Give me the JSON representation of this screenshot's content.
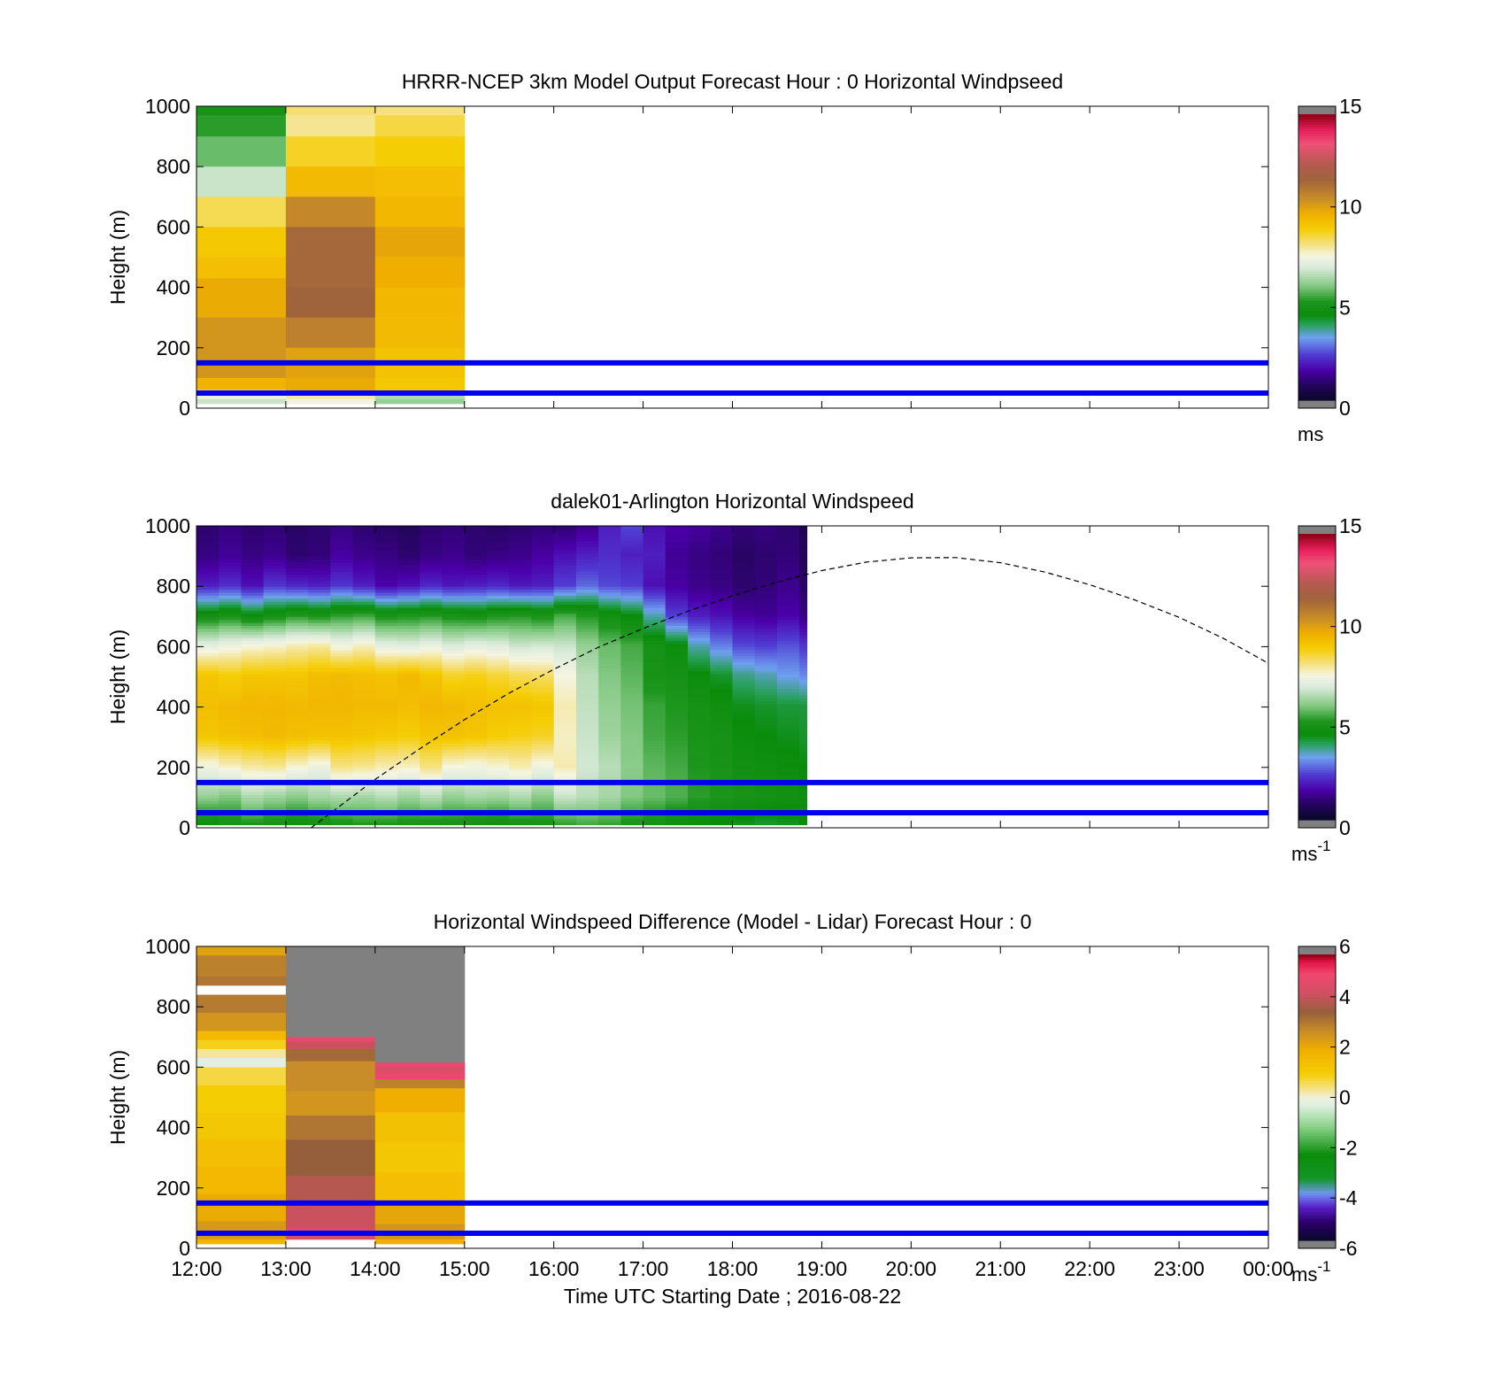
{
  "figure": {
    "xlabel": "Time UTC  Starting Date ; 2016-08-22",
    "xticks": [
      "12:00",
      "13:00",
      "14:00",
      "15:00",
      "16:00",
      "17:00",
      "18:00",
      "19:00",
      "20:00",
      "21:00",
      "22:00",
      "23:00",
      "00:00"
    ],
    "yticks": [
      "0",
      "200",
      "400",
      "600",
      "800",
      "1000"
    ],
    "ylabel": "Height (m)"
  },
  "chart_data": [
    {
      "type": "heatmap",
      "title": "HRRR-NCEP 3km Model Output   Forecast Hour : 0 Horizontal Windpseed",
      "ylabel": "Height (m)",
      "ylim": [
        0,
        1000
      ],
      "xlim": [
        "12:00",
        "00:00"
      ],
      "colorbar": {
        "ticks": [
          "0",
          "5",
          "10",
          "15"
        ],
        "range": [
          0,
          15
        ],
        "unit_text": "ms",
        "unit_sup": ""
      },
      "reference_lines_m": [
        150,
        50
      ],
      "reference_line_color": "#0000ee",
      "columns": [
        {
          "start": "12:00",
          "end": "13:00",
          "cells": [
            [
              970,
              1000,
              5
            ],
            [
              900,
              970,
              5.3
            ],
            [
              800,
              900,
              5.8
            ],
            [
              700,
              800,
              6.8
            ],
            [
              600,
              700,
              8.5
            ],
            [
              500,
              600,
              9.1
            ],
            [
              430,
              500,
              9.4
            ],
            [
              300,
              430,
              9.9
            ],
            [
              200,
              300,
              10.4
            ],
            [
              100,
              200,
              10.4
            ],
            [
              60,
              100,
              9.7
            ],
            [
              30,
              60,
              7.4
            ],
            [
              15,
              30,
              6.8
            ]
          ]
        },
        {
          "start": "13:00",
          "end": "14:00",
          "cells": [
            [
              970,
              1000,
              8.3
            ],
            [
              900,
              970,
              8.1
            ],
            [
              800,
              900,
              8.8
            ],
            [
              700,
              800,
              9.5
            ],
            [
              600,
              700,
              10.7
            ],
            [
              400,
              600,
              11.5
            ],
            [
              300,
              400,
              11.6
            ],
            [
              200,
              300,
              10.9
            ],
            [
              100,
              200,
              10.1
            ],
            [
              50,
              100,
              9.9
            ],
            [
              30,
              50,
              8.0
            ],
            [
              15,
              30,
              7.5
            ]
          ]
        },
        {
          "start": "14:00",
          "end": "15:00",
          "cells": [
            [
              970,
              1000,
              8.2
            ],
            [
              900,
              970,
              8.6
            ],
            [
              800,
              900,
              9.0
            ],
            [
              700,
              800,
              9.4
            ],
            [
              600,
              700,
              9.6
            ],
            [
              500,
              600,
              10.0
            ],
            [
              400,
              500,
              9.8
            ],
            [
              300,
              400,
              9.6
            ],
            [
              200,
              300,
              9.5
            ],
            [
              100,
              200,
              9.3
            ],
            [
              50,
              100,
              9.1
            ],
            [
              30,
              50,
              6.5
            ],
            [
              15,
              30,
              6.2
            ]
          ]
        }
      ]
    },
    {
      "type": "heatmap",
      "title": "dalek01-Arlington  Horizontal Windspeed",
      "ylabel": "Height (m)",
      "ylim": [
        0,
        1000
      ],
      "xlim": [
        "12:00",
        "00:00"
      ],
      "colorbar": {
        "ticks": [
          "0",
          "5",
          "10",
          "15"
        ],
        "range": [
          0,
          15
        ],
        "unit_text": "ms",
        "unit_sup": "-1"
      },
      "reference_lines_m": [
        150,
        50
      ],
      "reference_line_color": "#0000ee",
      "profile_times": [
        "12:00",
        "12:15",
        "12:30",
        "12:45",
        "13:00",
        "13:15",
        "13:30",
        "13:45",
        "14:00",
        "14:15",
        "14:30",
        "14:45",
        "15:00",
        "15:15",
        "15:30",
        "15:45",
        "16:00",
        "16:15",
        "16:30",
        "16:45",
        "17:00",
        "17:15",
        "17:30",
        "17:45",
        "18:00",
        "18:15",
        "18:30",
        "18:45"
      ],
      "profile_end": "18:50",
      "height_levels_m": [
        0,
        100,
        200,
        300,
        400,
        500,
        600,
        700,
        800,
        900,
        1000
      ],
      "profiles": [
        [
          4.5,
          6.2,
          7.5,
          9.2,
          9.4,
          9.2,
          7.2,
          4.8,
          2.0,
          1.2,
          1.0
        ],
        [
          4.8,
          6.0,
          7.8,
          9.3,
          9.5,
          9.0,
          7.4,
          5.0,
          2.2,
          1.4,
          1.2
        ],
        [
          5.0,
          6.5,
          8.0,
          9.4,
          9.6,
          9.2,
          7.6,
          4.6,
          1.8,
          1.2,
          1.0
        ],
        [
          4.8,
          6.3,
          8.1,
          9.5,
          9.6,
          9.2,
          7.7,
          4.9,
          2.3,
          1.3,
          1.1
        ],
        [
          4.6,
          6.1,
          7.7,
          9.4,
          9.5,
          9.2,
          7.9,
          5.2,
          2.1,
          1.0,
          0.9
        ],
        [
          4.7,
          6.4,
          7.4,
          9.3,
          9.6,
          9.4,
          8.0,
          5.0,
          2.0,
          1.1,
          1.0
        ],
        [
          4.9,
          6.5,
          8.2,
          9.3,
          9.6,
          9.5,
          7.5,
          5.3,
          2.3,
          1.5,
          1.2
        ],
        [
          5.1,
          6.4,
          8.1,
          9.2,
          9.5,
          9.4,
          7.8,
          5.4,
          2.0,
          1.3,
          1.0
        ],
        [
          5.0,
          6.6,
          7.9,
          9.1,
          9.5,
          9.3,
          7.2,
          5.0,
          1.6,
          1.2,
          0.9
        ],
        [
          4.9,
          6.3,
          7.8,
          9.0,
          9.4,
          9.5,
          7.1,
          5.1,
          1.8,
          1.0,
          0.8
        ],
        [
          4.8,
          6.6,
          8.2,
          9.2,
          9.6,
          9.2,
          7.3,
          5.2,
          2.1,
          1.2,
          1.0
        ],
        [
          4.9,
          6.2,
          7.6,
          9.3,
          9.5,
          8.8,
          7.0,
          5.0,
          1.9,
          1.3,
          1.1
        ],
        [
          4.7,
          6.4,
          7.5,
          9.2,
          9.4,
          8.9,
          7.2,
          4.9,
          2.0,
          1.1,
          1.0
        ],
        [
          4.6,
          6.3,
          7.7,
          9.0,
          9.3,
          8.7,
          7.1,
          5.1,
          2.1,
          1.2,
          0.9
        ],
        [
          4.8,
          6.5,
          7.9,
          8.9,
          9.3,
          8.5,
          6.8,
          5.2,
          1.9,
          1.3,
          1.0
        ],
        [
          4.9,
          6.1,
          7.5,
          8.8,
          9.2,
          8.4,
          6.9,
          5.0,
          2.0,
          1.5,
          1.1
        ],
        [
          5.2,
          6.8,
          7.9,
          7.8,
          7.9,
          7.6,
          6.8,
          5.5,
          2.4,
          1.8,
          1.0
        ],
        [
          5.4,
          6.6,
          6.9,
          6.8,
          6.7,
          6.6,
          6.2,
          5.2,
          2.8,
          2.0,
          1.3
        ],
        [
          5.3,
          6.4,
          6.6,
          6.3,
          6.2,
          6.0,
          5.8,
          4.8,
          2.5,
          2.2,
          2.0
        ],
        [
          5.0,
          6.0,
          6.1,
          6.0,
          5.9,
          5.7,
          5.5,
          4.5,
          2.4,
          2.0,
          2.5
        ],
        [
          4.8,
          5.8,
          5.7,
          5.5,
          5.4,
          5.0,
          4.9,
          3.6,
          1.8,
          2.0,
          1.8
        ],
        [
          4.6,
          5.6,
          5.5,
          5.3,
          5.2,
          4.9,
          4.6,
          2.4,
          1.5,
          1.4,
          1.6
        ],
        [
          4.5,
          5.3,
          5.2,
          5.0,
          4.9,
          4.6,
          3.6,
          2.0,
          1.3,
          1.2,
          1.5
        ],
        [
          4.4,
          5.1,
          5.0,
          4.9,
          4.7,
          4.3,
          3.0,
          1.8,
          1.2,
          1.1,
          1.3
        ],
        [
          4.3,
          5.0,
          4.8,
          4.6,
          4.4,
          3.8,
          2.5,
          1.5,
          1.0,
          0.9,
          1.1
        ],
        [
          4.2,
          4.9,
          4.7,
          4.5,
          4.3,
          3.6,
          2.4,
          1.4,
          1.1,
          1.0,
          1.2
        ],
        [
          4.3,
          4.8,
          4.6,
          4.4,
          4.2,
          3.3,
          2.6,
          1.6,
          1.3,
          1.1,
          1.0
        ],
        [
          4.5,
          4.7,
          4.5,
          4.3,
          4.2,
          3.1,
          2.3,
          1.2,
          0.9,
          0.8,
          0.7
        ]
      ],
      "boundary_layer_curve": {
        "times": [
          "13:17",
          "14:00",
          "14:30",
          "15:00",
          "15:30",
          "16:00",
          "16:30",
          "17:00",
          "17:30",
          "18:00",
          "18:30",
          "19:00",
          "19:30",
          "20:00",
          "20:30",
          "21:00",
          "21:30",
          "22:00",
          "22:30",
          "23:00",
          "23:30",
          "00:00"
        ],
        "heights_m": [
          0,
          160,
          262,
          358,
          446,
          525,
          598,
          660,
          717,
          768,
          814,
          852,
          880,
          894,
          895,
          878,
          847,
          805,
          755,
          697,
          627,
          545
        ]
      }
    },
    {
      "type": "heatmap",
      "title": "Horizontal Windspeed Difference (Model - Lidar) Forecast Hour : 0",
      "xlabel": "Time UTC  Starting Date ; 2016-08-22",
      "ylabel": "Height (m)",
      "ylim": [
        0,
        1000
      ],
      "xlim": [
        "12:00",
        "00:00"
      ],
      "colorbar": {
        "ticks": [
          "-6",
          "-4",
          "-2",
          "0",
          "2",
          "4",
          "6"
        ],
        "range": [
          -6,
          6
        ],
        "unit_text": "ms",
        "unit_sup": "-1"
      },
      "reference_lines_m": [
        150,
        50
      ],
      "reference_line_color": "#0000ee",
      "columns": [
        {
          "start": "12:00",
          "end": "13:00",
          "cells": [
            [
              970,
              1000,
              2.3
            ],
            [
              900,
              970,
              3.0
            ],
            [
              870,
              900,
              3.2
            ],
            [
              840,
              870,
              "white"
            ],
            [
              780,
              840,
              3.1
            ],
            [
              720,
              780,
              2.6
            ],
            [
              690,
              720,
              1.7
            ],
            [
              660,
              690,
              0.9
            ],
            [
              630,
              660,
              0.3
            ],
            [
              600,
              630,
              -0.3
            ],
            [
              540,
              600,
              0.7
            ],
            [
              450,
              540,
              1.0
            ],
            [
              360,
              450,
              1.2
            ],
            [
              270,
              360,
              1.5
            ],
            [
              180,
              270,
              1.7
            ],
            [
              90,
              180,
              2.1
            ],
            [
              30,
              90,
              2.5
            ],
            [
              15,
              30,
              1.8
            ]
          ]
        },
        {
          "start": "13:00",
          "end": "14:00",
          "cells": [
            [
              700,
              1000,
              "missing"
            ],
            [
              685,
              700,
              5.0
            ],
            [
              660,
              685,
              4.3
            ],
            [
              620,
              660,
              3.4
            ],
            [
              520,
              620,
              2.8
            ],
            [
              440,
              520,
              2.6
            ],
            [
              360,
              440,
              3.2
            ],
            [
              240,
              360,
              3.6
            ],
            [
              160,
              240,
              4.0
            ],
            [
              70,
              160,
              4.3
            ],
            [
              30,
              70,
              4.6
            ]
          ]
        },
        {
          "start": "14:00",
          "end": "15:00",
          "cells": [
            [
              615,
              1000,
              "missing"
            ],
            [
              600,
              615,
              5.0
            ],
            [
              580,
              600,
              4.6
            ],
            [
              560,
              580,
              5.1
            ],
            [
              530,
              560,
              3.0
            ],
            [
              450,
              530,
              2.0
            ],
            [
              350,
              450,
              1.4
            ],
            [
              250,
              350,
              1.2
            ],
            [
              150,
              250,
              1.5
            ],
            [
              80,
              150,
              2.2
            ],
            [
              30,
              80,
              2.6
            ],
            [
              15,
              30,
              2.0
            ]
          ]
        }
      ]
    }
  ]
}
